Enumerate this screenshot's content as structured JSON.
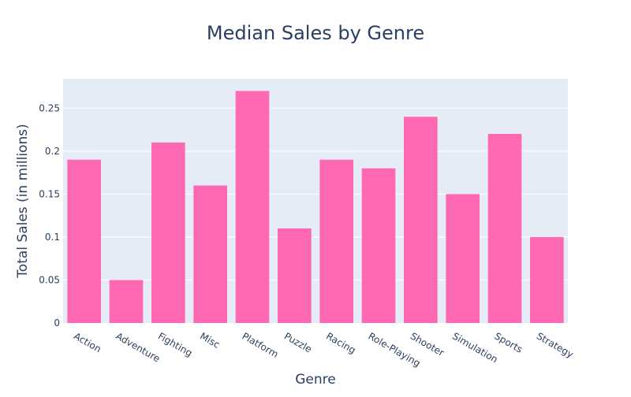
{
  "chart_data": {
    "type": "bar",
    "title": "Median Sales by Genre",
    "xlabel": "Genre",
    "ylabel": "Total Sales (in millions)",
    "categories": [
      "Action",
      "Adventure",
      "Fighting",
      "Misc",
      "Platform",
      "Puzzle",
      "Racing",
      "Role-Playing",
      "Shooter",
      "Simulation",
      "Sports",
      "Strategy"
    ],
    "values": [
      0.19,
      0.05,
      0.21,
      0.16,
      0.27,
      0.11,
      0.19,
      0.18,
      0.24,
      0.15,
      0.22,
      0.1
    ],
    "yticks": [
      0,
      0.05,
      0.1,
      0.15,
      0.2,
      0.25
    ],
    "ytick_labels": [
      "0",
      "0.05",
      "0.1",
      "0.15",
      "0.2",
      "0.25"
    ],
    "ylim": [
      0,
      0.2842
    ],
    "grid": true,
    "colors": {
      "bar": "#ff69b4",
      "plot_bg": "#e5ecf6",
      "grid": "#ffffff",
      "text": "#2a3f5f"
    }
  }
}
